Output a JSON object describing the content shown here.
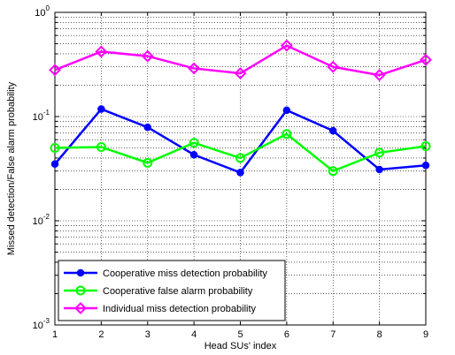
{
  "chart_data": {
    "type": "line",
    "xlabel": "Head SUs' index",
    "ylabel": "Missed detection/False alarm probability",
    "x": [
      1,
      2,
      3,
      4,
      5,
      6,
      7,
      8,
      9
    ],
    "xlim": [
      1,
      9
    ],
    "ylim": [
      0.001,
      1
    ],
    "yscale": "log",
    "grid": true,
    "legend_position": "bottom-left",
    "x_ticks": [
      "1",
      "2",
      "3",
      "4",
      "5",
      "6",
      "7",
      "8",
      "9"
    ],
    "y_ticks": [
      {
        "base": "10",
        "exp": "-3",
        "value": 0.001
      },
      {
        "base": "10",
        "exp": "-2",
        "value": 0.01
      },
      {
        "base": "10",
        "exp": "-1",
        "value": 0.1
      },
      {
        "base": "10",
        "exp": "0",
        "value": 1
      }
    ],
    "series": [
      {
        "name": "Cooperative miss detection probability",
        "color": "#0000ff",
        "marker": "circle-filled",
        "values": [
          0.035,
          0.118,
          0.079,
          0.043,
          0.029,
          0.115,
          0.073,
          0.031,
          0.034
        ]
      },
      {
        "name": "Cooperative false alarm probability",
        "color": "#00ff00",
        "marker": "circle-open",
        "values": [
          0.05,
          0.051,
          0.036,
          0.056,
          0.04,
          0.068,
          0.03,
          0.045,
          0.052
        ]
      },
      {
        "name": "Individual miss detection probability",
        "color": "#ff00ff",
        "marker": "diamond-open",
        "values": [
          0.28,
          0.42,
          0.38,
          0.29,
          0.26,
          0.48,
          0.3,
          0.25,
          0.35
        ]
      }
    ]
  }
}
